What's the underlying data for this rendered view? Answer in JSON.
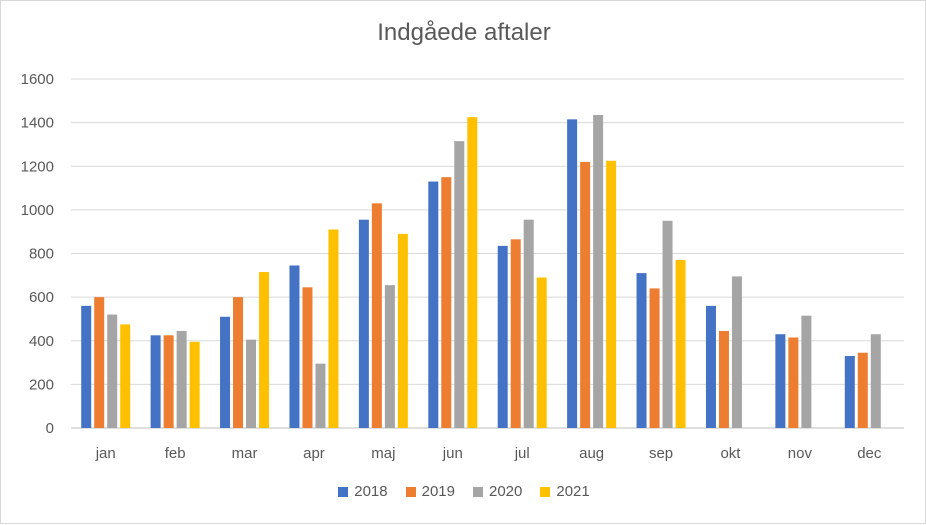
{
  "chart_data": {
    "type": "bar",
    "title": "Indgåede aftaler",
    "xlabel": "",
    "ylabel": "",
    "ylim": [
      0,
      1600
    ],
    "yticks": [
      0,
      200,
      400,
      600,
      800,
      1000,
      1200,
      1400,
      1600
    ],
    "grid": true,
    "legend_position": "bottom",
    "categories": [
      "jan",
      "feb",
      "mar",
      "apr",
      "maj",
      "jun",
      "jul",
      "aug",
      "sep",
      "okt",
      "nov",
      "dec"
    ],
    "series": [
      {
        "name": "2018",
        "color": "#4472c4",
        "values": [
          560,
          425,
          510,
          745,
          955,
          1130,
          835,
          1415,
          710,
          560,
          430,
          330
        ]
      },
      {
        "name": "2019",
        "color": "#ed7d31",
        "values": [
          600,
          425,
          600,
          645,
          1030,
          1150,
          865,
          1220,
          640,
          445,
          415,
          345
        ]
      },
      {
        "name": "2020",
        "color": "#a5a5a5",
        "values": [
          520,
          445,
          405,
          295,
          655,
          1315,
          955,
          1435,
          950,
          695,
          515,
          430
        ]
      },
      {
        "name": "2021",
        "color": "#ffc000",
        "values": [
          475,
          395,
          715,
          910,
          890,
          1425,
          690,
          1225,
          770,
          null,
          null,
          null
        ]
      }
    ]
  }
}
